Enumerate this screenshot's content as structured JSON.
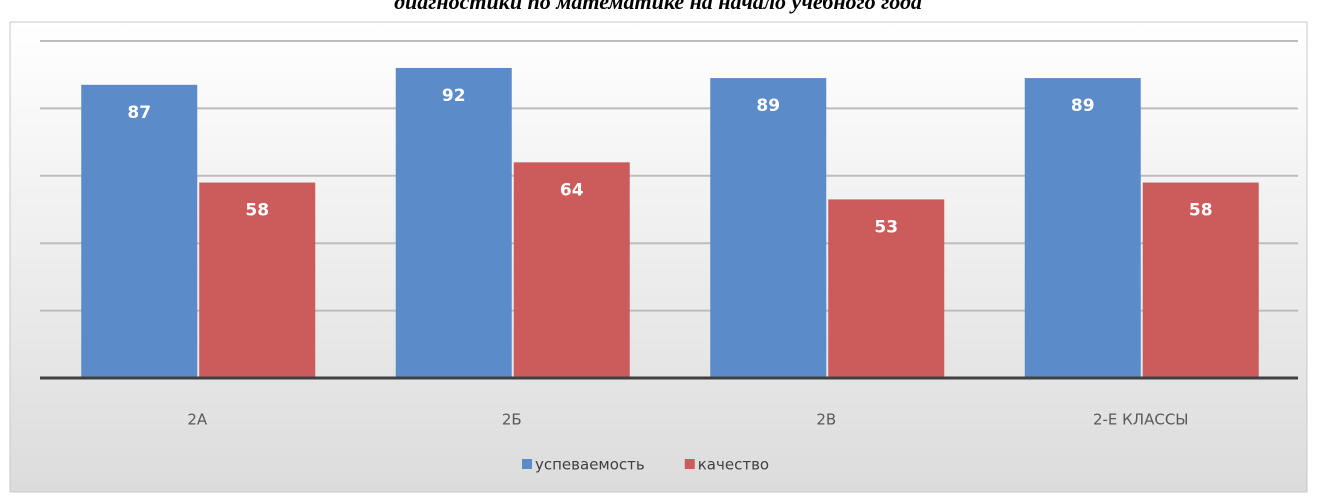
{
  "chart_data": {
    "type": "bar",
    "title": "диагностики по математике на начало учебного года",
    "categories": [
      "2А",
      "2Б",
      "2В",
      "2-Е КЛАССЫ"
    ],
    "series": [
      {
        "name": "успеваемость",
        "color": "#5b8bc9",
        "values": [
          87,
          92,
          89,
          89
        ]
      },
      {
        "name": "качество",
        "color": "#cc5c5c",
        "values": [
          58,
          64,
          53,
          58
        ]
      }
    ],
    "ylim": [
      0,
      100
    ],
    "yticks": [
      0,
      20,
      40,
      60,
      80,
      100
    ],
    "grid": true,
    "legend": "bottom"
  }
}
